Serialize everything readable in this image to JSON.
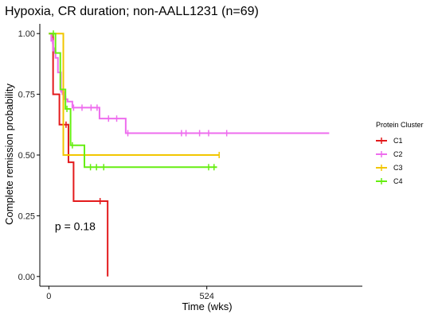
{
  "chart_data": {
    "type": "line",
    "subtype": "kaplan-meier step",
    "title": "Hypoxia, CR duration; non-AALL1231 (n=69)",
    "xlabel": "Time (wks)",
    "ylabel": "Complete remission probability",
    "xlim": [
      -30,
      1040
    ],
    "ylim": [
      -0.04,
      1.04
    ],
    "x_ticks": [
      0,
      524
    ],
    "x_tick_labels": [
      "0",
      "524"
    ],
    "y_ticks": [
      0.0,
      0.25,
      0.5,
      0.75,
      1.0
    ],
    "y_tick_labels": [
      "0.00",
      "0.25",
      "0.50",
      "0.75",
      "1.00"
    ],
    "grid": false,
    "legend": {
      "title": "Protein Cluster",
      "position": "right"
    },
    "annotation": {
      "text": "p = 0.18",
      "x": 20,
      "y": 0.19
    },
    "series": [
      {
        "name": "C1",
        "color": "#e31a1c",
        "steps": [
          [
            0,
            1.0
          ],
          [
            14,
            0.75
          ],
          [
            35,
            0.625
          ],
          [
            65,
            0.47
          ],
          [
            82,
            0.31
          ],
          [
            195,
            0.0
          ]
        ],
        "end_x": 195,
        "censored": [
          [
            57,
            0.625
          ],
          [
            170,
            0.31
          ]
        ]
      },
      {
        "name": "C2",
        "color": "#ee6dee",
        "steps": [
          [
            0,
            1.0
          ],
          [
            8,
            0.97
          ],
          [
            14,
            0.93
          ],
          [
            22,
            0.9
          ],
          [
            30,
            0.84
          ],
          [
            40,
            0.76
          ],
          [
            52,
            0.73
          ],
          [
            62,
            0.72
          ],
          [
            78,
            0.695
          ],
          [
            168,
            0.65
          ],
          [
            255,
            0.59
          ]
        ],
        "end_x": 930,
        "censored": [
          [
            12,
            0.97
          ],
          [
            18,
            0.93
          ],
          [
            44,
            0.76
          ],
          [
            56,
            0.73
          ],
          [
            82,
            0.695
          ],
          [
            110,
            0.695
          ],
          [
            140,
            0.695
          ],
          [
            160,
            0.695
          ],
          [
            198,
            0.65
          ],
          [
            225,
            0.65
          ],
          [
            262,
            0.59
          ],
          [
            440,
            0.59
          ],
          [
            455,
            0.59
          ],
          [
            500,
            0.59
          ],
          [
            530,
            0.59
          ],
          [
            590,
            0.59
          ]
        ]
      },
      {
        "name": "C3",
        "color": "#f2c600",
        "steps": [
          [
            0,
            1.0
          ],
          [
            48,
            0.5
          ]
        ],
        "end_x": 565,
        "censored": [
          [
            565,
            0.5
          ]
        ]
      },
      {
        "name": "C4",
        "color": "#66ee11",
        "steps": [
          [
            0,
            1.0
          ],
          [
            22,
            0.92
          ],
          [
            38,
            0.77
          ],
          [
            55,
            0.69
          ],
          [
            72,
            0.54
          ],
          [
            118,
            0.45
          ]
        ],
        "end_x": 558,
        "censored": [
          [
            15,
            1.0
          ],
          [
            60,
            0.69
          ],
          [
            78,
            0.54
          ],
          [
            138,
            0.45
          ],
          [
            158,
            0.45
          ],
          [
            182,
            0.45
          ],
          [
            530,
            0.45
          ],
          [
            548,
            0.45
          ]
        ]
      }
    ]
  }
}
